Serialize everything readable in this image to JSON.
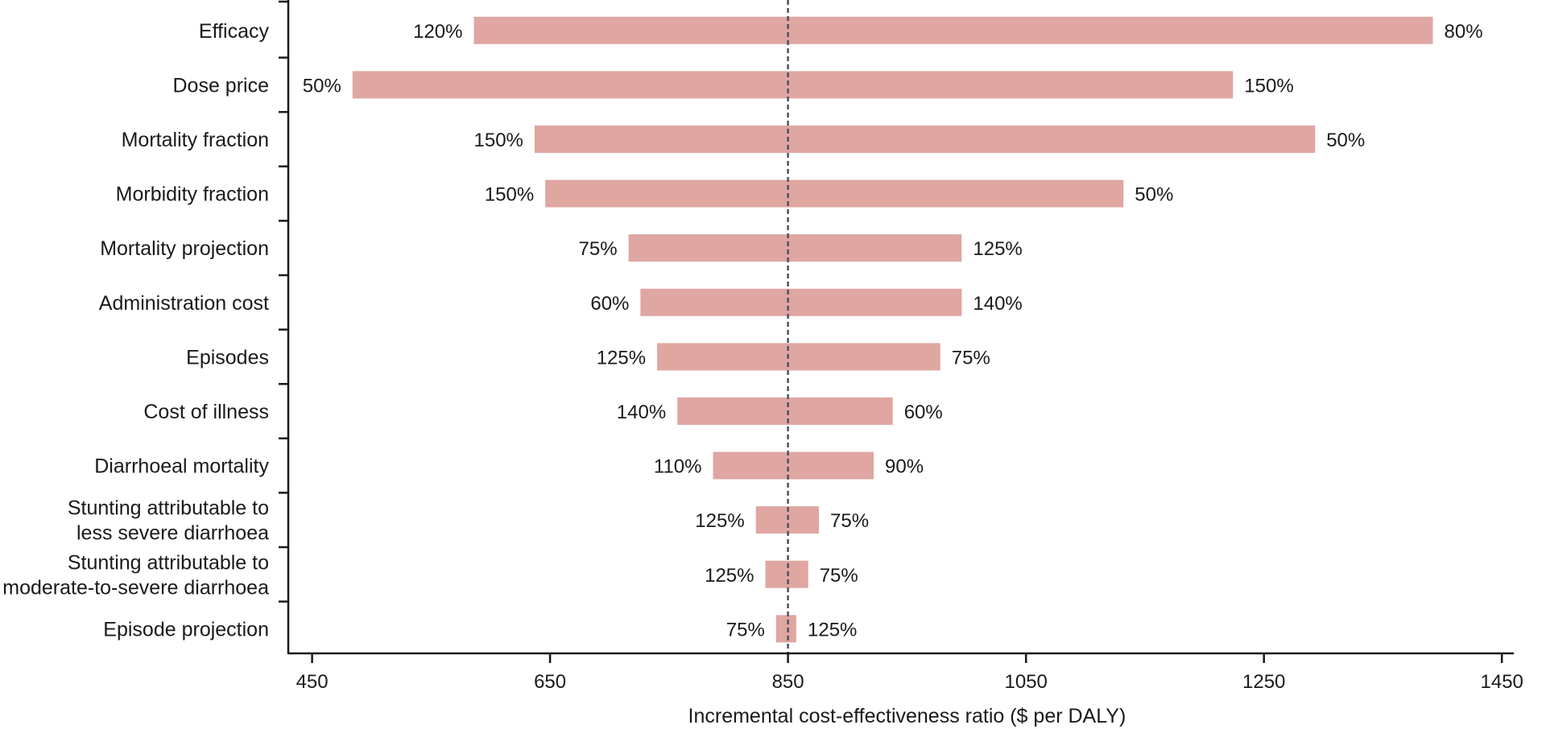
{
  "chart_data": {
    "type": "bar",
    "subtype": "tornado",
    "xlabel": "Incremental cost-effectiveness ratio ($ per DALY)",
    "xlim": [
      430,
      1460
    ],
    "xticks": [
      450,
      650,
      850,
      1050,
      1250,
      1450
    ],
    "base_value": 850,
    "bar_color": "#e0a6a2",
    "reference_line": {
      "value": 850,
      "style": "dashed",
      "color": "#4a5563"
    },
    "rows": [
      {
        "label": [
          "Efficacy"
        ],
        "low": 586,
        "high": 1392,
        "left_label": "120%",
        "right_label": "80%"
      },
      {
        "label": [
          "Dose price"
        ],
        "low": 484,
        "high": 1224,
        "left_label": "50%",
        "right_label": "150%"
      },
      {
        "label": [
          "Mortality fraction"
        ],
        "low": 637,
        "high": 1293,
        "left_label": "150%",
        "right_label": "50%"
      },
      {
        "label": [
          "Morbidity fraction"
        ],
        "low": 646,
        "high": 1132,
        "left_label": "150%",
        "right_label": "50%"
      },
      {
        "label": [
          "Mortality projection"
        ],
        "low": 716,
        "high": 996,
        "left_label": "75%",
        "right_label": "125%"
      },
      {
        "label": [
          "Administration cost"
        ],
        "low": 726,
        "high": 996,
        "left_label": "60%",
        "right_label": "140%"
      },
      {
        "label": [
          "Episodes"
        ],
        "low": 740,
        "high": 978,
        "left_label": "125%",
        "right_label": "75%"
      },
      {
        "label": [
          "Cost of illness"
        ],
        "low": 757,
        "high": 938,
        "left_label": "140%",
        "right_label": "60%"
      },
      {
        "label": [
          "Diarrhoeal mortality"
        ],
        "low": 787,
        "high": 922,
        "left_label": "110%",
        "right_label": "90%"
      },
      {
        "label": [
          "Stunting attributable to",
          "less severe diarrhoea"
        ],
        "low": 823,
        "high": 876,
        "left_label": "125%",
        "right_label": "75%"
      },
      {
        "label": [
          "Stunting attributable to",
          "moderate-to-severe diarrhoea"
        ],
        "low": 831,
        "high": 867,
        "left_label": "125%",
        "right_label": "75%"
      },
      {
        "label": [
          "Episode projection"
        ],
        "low": 840,
        "high": 857,
        "left_label": "75%",
        "right_label": "125%"
      }
    ]
  }
}
